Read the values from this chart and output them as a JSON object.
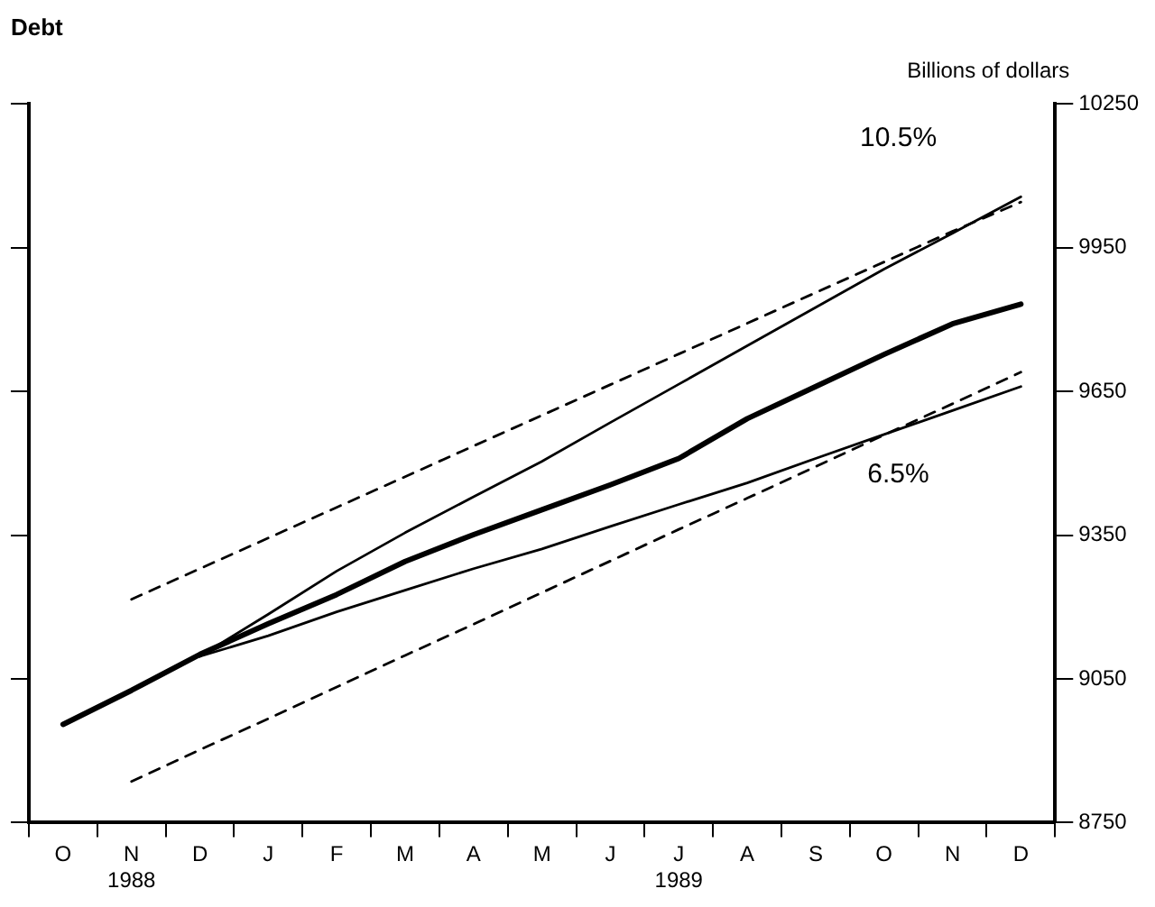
{
  "chart_data": {
    "type": "line",
    "title": "Debt",
    "ylabel": "Billions of dollars",
    "categories": [
      "O",
      "N\n1988",
      "D",
      "J",
      "F",
      "M",
      "A",
      "M",
      "J",
      "J\n1989",
      "A",
      "S",
      "O",
      "N",
      "D"
    ],
    "series": [
      {
        "color": "#000000",
        "line_style": "solid",
        "values": [
          8955,
          9026,
          9101,
          9165,
          9226,
          9295,
          9351,
          9403,
          9455,
          9510,
          9593,
          9660,
          9727,
          9791,
          9832
        ]
      },
      {
        "name": "10.5%",
        "color": "#000000",
        "line_style": "solid",
        "values": [
          null,
          null,
          9097,
          9185,
          9275,
          9355,
          9430,
          9504,
          9585,
          9665,
          9745,
          9825,
          9905,
          9980,
          10056
        ]
      },
      {
        "name": "6.5%",
        "color": "#000000",
        "line_style": "solid",
        "values": [
          null,
          null,
          9097,
          9140,
          9190,
          9235,
          9280,
          9321,
          9368,
          9414,
          9459,
          9510,
          9560,
          9610,
          9660
        ]
      },
      {
        "color": "#000000",
        "line_style": "dashed",
        "values": [
          null,
          9216,
          9280,
          9344,
          9408,
          9472,
          9536,
          9600,
          9664,
          9728,
          9792,
          9856,
          9920,
          9984,
          10045
        ]
      },
      {
        "color": "#000000",
        "line_style": "dashed",
        "values": [
          null,
          8836,
          8902,
          8967,
          9033,
          9099,
          9164,
          9230,
          9296,
          9362,
          9427,
          9493,
          9559,
          9624,
          9690
        ]
      }
    ],
    "ylim": [
      8750,
      10250
    ],
    "yticks": [
      8750,
      9050,
      9350,
      9650,
      9950,
      10250
    ],
    "grid": false,
    "legend": false,
    "marker": "none"
  }
}
